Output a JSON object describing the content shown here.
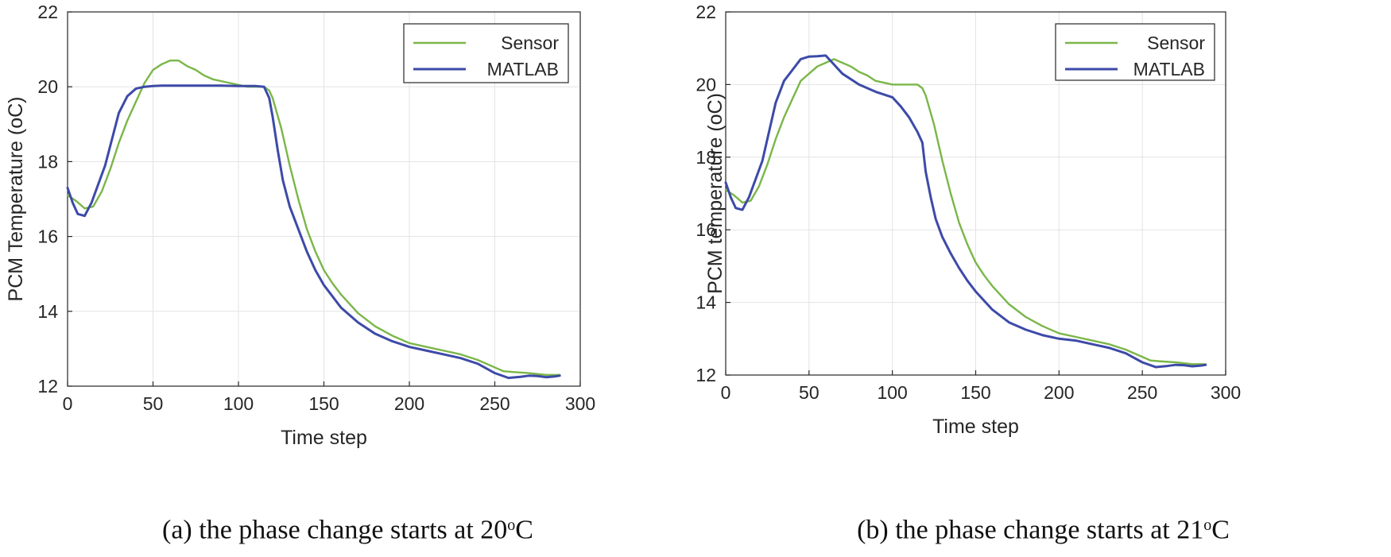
{
  "chart_data": [
    {
      "id": "a",
      "type": "line",
      "xlabel": "Time step",
      "ylabel": "PCM Temperature (oC)",
      "xlim": [
        0,
        300
      ],
      "ylim": [
        12,
        22
      ],
      "xticks": [
        0,
        50,
        100,
        150,
        200,
        250,
        300
      ],
      "yticks": [
        12,
        14,
        16,
        18,
        20,
        22
      ],
      "grid": true,
      "legend_position": "top-right",
      "caption": {
        "prefix": "(a) the phase change starts at 20",
        "degree": "o",
        "unit": "C"
      },
      "series": [
        {
          "name": "Sensor",
          "color": "#7ab648",
          "x": [
            0,
            5,
            10,
            15,
            20,
            25,
            30,
            35,
            40,
            45,
            50,
            55,
            60,
            65,
            70,
            75,
            80,
            85,
            90,
            95,
            100,
            105,
            110,
            115,
            118,
            120,
            125,
            130,
            135,
            140,
            145,
            150,
            155,
            160,
            170,
            180,
            190,
            200,
            210,
            220,
            230,
            240,
            250,
            255,
            260,
            270,
            280,
            288
          ],
          "y": [
            17.1,
            16.95,
            16.75,
            16.8,
            17.2,
            17.8,
            18.5,
            19.1,
            19.6,
            20.1,
            20.45,
            20.6,
            20.7,
            20.7,
            20.55,
            20.45,
            20.3,
            20.2,
            20.15,
            20.1,
            20.05,
            20.0,
            20.0,
            20.0,
            19.9,
            19.7,
            18.9,
            17.9,
            17.0,
            16.2,
            15.6,
            15.1,
            14.75,
            14.45,
            13.95,
            13.6,
            13.35,
            13.15,
            13.05,
            12.95,
            12.85,
            12.7,
            12.5,
            12.4,
            12.38,
            12.35,
            12.3,
            12.3
          ]
        },
        {
          "name": "MATLAB",
          "color": "#3d4aa8",
          "x": [
            0,
            3,
            6,
            10,
            14,
            18,
            22,
            26,
            30,
            35,
            40,
            45,
            50,
            55,
            60,
            70,
            80,
            90,
            100,
            110,
            115,
            118,
            120,
            123,
            126,
            130,
            135,
            140,
            145,
            150,
            160,
            170,
            180,
            190,
            200,
            210,
            220,
            230,
            240,
            250,
            258,
            265,
            270,
            275,
            280,
            285,
            288
          ],
          "y": [
            17.3,
            16.9,
            16.6,
            16.55,
            16.9,
            17.4,
            17.9,
            18.6,
            19.3,
            19.75,
            19.95,
            20.0,
            20.02,
            20.03,
            20.03,
            20.03,
            20.03,
            20.03,
            20.02,
            20.02,
            20.0,
            19.7,
            19.2,
            18.3,
            17.5,
            16.8,
            16.2,
            15.6,
            15.1,
            14.7,
            14.1,
            13.7,
            13.4,
            13.2,
            13.05,
            12.95,
            12.85,
            12.75,
            12.6,
            12.35,
            12.22,
            12.25,
            12.28,
            12.27,
            12.24,
            12.26,
            12.28
          ]
        }
      ]
    },
    {
      "id": "b",
      "type": "line",
      "xlabel": "Time step",
      "ylabel": "PCM temperature (oC)",
      "xlim": [
        0,
        300
      ],
      "ylim": [
        12,
        22
      ],
      "xticks": [
        0,
        50,
        100,
        150,
        200,
        250,
        300
      ],
      "yticks": [
        12,
        14,
        16,
        18,
        20,
        22
      ],
      "grid": true,
      "legend_position": "top-right",
      "caption": {
        "prefix": "(b) the phase change starts at 21",
        "degree": "o",
        "unit": "C"
      },
      "series": [
        {
          "name": "Sensor",
          "color": "#7ab648",
          "x": [
            0,
            5,
            10,
            15,
            20,
            25,
            30,
            35,
            40,
            45,
            50,
            55,
            60,
            65,
            70,
            75,
            80,
            85,
            90,
            95,
            100,
            105,
            110,
            115,
            118,
            120,
            125,
            130,
            135,
            140,
            145,
            150,
            155,
            160,
            170,
            180,
            190,
            200,
            210,
            220,
            230,
            240,
            250,
            255,
            260,
            270,
            280,
            288
          ],
          "y": [
            17.1,
            16.95,
            16.75,
            16.8,
            17.2,
            17.8,
            18.5,
            19.1,
            19.6,
            20.1,
            20.3,
            20.5,
            20.6,
            20.7,
            20.6,
            20.5,
            20.35,
            20.25,
            20.1,
            20.05,
            20.0,
            20.0,
            20.0,
            20.0,
            19.9,
            19.7,
            18.9,
            17.9,
            17.0,
            16.2,
            15.6,
            15.1,
            14.75,
            14.45,
            13.95,
            13.6,
            13.35,
            13.15,
            13.05,
            12.95,
            12.85,
            12.7,
            12.5,
            12.4,
            12.38,
            12.35,
            12.3,
            12.3
          ]
        },
        {
          "name": "MATLAB",
          "color": "#3d4aa8",
          "x": [
            0,
            3,
            6,
            10,
            14,
            18,
            22,
            26,
            30,
            35,
            40,
            45,
            50,
            55,
            60,
            65,
            70,
            80,
            90,
            100,
            105,
            110,
            115,
            118,
            120,
            123,
            126,
            130,
            135,
            140,
            145,
            150,
            160,
            170,
            180,
            190,
            200,
            210,
            220,
            230,
            240,
            250,
            258,
            265,
            270,
            275,
            280,
            285,
            288
          ],
          "y": [
            17.3,
            16.9,
            16.6,
            16.55,
            16.9,
            17.4,
            17.9,
            18.7,
            19.5,
            20.1,
            20.4,
            20.7,
            20.77,
            20.78,
            20.8,
            20.55,
            20.3,
            20.0,
            19.8,
            19.65,
            19.4,
            19.1,
            18.7,
            18.4,
            17.6,
            16.9,
            16.3,
            15.8,
            15.35,
            14.95,
            14.6,
            14.3,
            13.8,
            13.45,
            13.25,
            13.1,
            13.0,
            12.95,
            12.85,
            12.75,
            12.6,
            12.35,
            12.22,
            12.25,
            12.28,
            12.27,
            12.24,
            12.26,
            12.28
          ]
        }
      ]
    }
  ]
}
